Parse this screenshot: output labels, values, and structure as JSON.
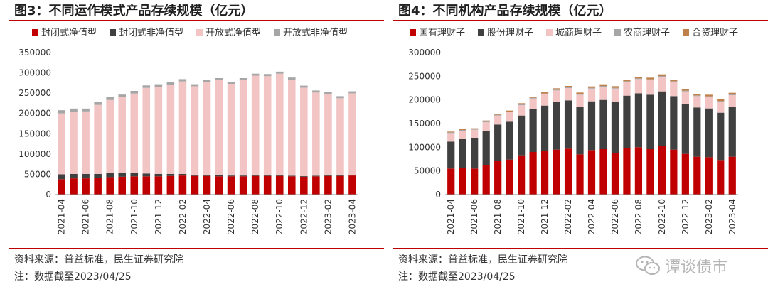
{
  "watermark": {
    "text": "谭谈债市"
  },
  "chart_data": [
    {
      "type": "bar",
      "stacked": true,
      "title": "图3：不同运作模式产品存续规模（亿元）",
      "source": "资料来源：普益标准，民生证券研究院",
      "note": "注：数据截至2023/04/25",
      "legend_position": "top",
      "ylim": [
        0,
        350000
      ],
      "yticks": [
        0,
        50000,
        100000,
        150000,
        200000,
        250000,
        300000,
        350000
      ],
      "categories": [
        "2021-04",
        "2021-05",
        "2021-06",
        "2021-07",
        "2021-08",
        "2021-09",
        "2021-10",
        "2021-11",
        "2021-12",
        "2022-01",
        "2022-02",
        "2022-03",
        "2022-04",
        "2022-05",
        "2022-06",
        "2022-07",
        "2022-08",
        "2022-09",
        "2022-10",
        "2022-11",
        "2022-12",
        "2023-01",
        "2023-02",
        "2023-03",
        "2023-04"
      ],
      "xtick_labels": [
        "2021-04",
        "2021-06",
        "2021-08",
        "2021-10",
        "2021-12",
        "2022-02",
        "2022-04",
        "2022-06",
        "2022-08",
        "2022-10",
        "2022-12",
        "2023-02",
        "2023-04"
      ],
      "series": [
        {
          "name": "封闭式净值型",
          "color": "#c00000",
          "values": [
            38000,
            40000,
            40000,
            41000,
            43000,
            44000,
            45000,
            45000,
            45000,
            46000,
            47000,
            46000,
            46000,
            45000,
            45000,
            45000,
            46000,
            46000,
            46000,
            45000,
            44000,
            45000,
            46000,
            46000,
            47000
          ]
        },
        {
          "name": "封闭式非净值型",
          "color": "#404040",
          "values": [
            12000,
            11000,
            11000,
            10000,
            10000,
            9000,
            8000,
            7000,
            6000,
            5000,
            4000,
            3000,
            3000,
            3000,
            2000,
            2000,
            2000,
            2000,
            2000,
            1500,
            1500,
            1500,
            1500,
            1500,
            1500
          ]
        },
        {
          "name": "开放式净值型",
          "color": "#f2c4c4",
          "values": [
            150000,
            153000,
            154000,
            170000,
            180000,
            187000,
            196000,
            211000,
            215000,
            220000,
            228000,
            218000,
            228000,
            234000,
            226000,
            235000,
            245000,
            244000,
            250000,
            237000,
            218000,
            205000,
            201000,
            190000,
            201000
          ]
        },
        {
          "name": "开放式非净值型",
          "color": "#a6a6a6",
          "values": [
            8000,
            8000,
            7000,
            7000,
            7000,
            6500,
            6500,
            6000,
            6000,
            5500,
            5500,
            5000,
            5000,
            5000,
            5000,
            5000,
            5000,
            5000,
            5000,
            5000,
            5000,
            5000,
            5000,
            5000,
            5000
          ]
        }
      ]
    },
    {
      "type": "bar",
      "stacked": true,
      "title": "图4：不同机构产品存续规模（亿元）",
      "source": "资料来源：普益标准，民生证券研究院",
      "note": "注：数据截至2023/04/25",
      "legend_position": "top",
      "ylim": [
        0,
        300000
      ],
      "yticks": [
        0,
        50000,
        100000,
        150000,
        200000,
        250000,
        300000
      ],
      "categories": [
        "2021-04",
        "2021-05",
        "2021-06",
        "2021-07",
        "2021-08",
        "2021-09",
        "2021-10",
        "2021-11",
        "2021-12",
        "2022-01",
        "2022-02",
        "2022-03",
        "2022-04",
        "2022-05",
        "2022-06",
        "2022-07",
        "2022-08",
        "2022-09",
        "2022-10",
        "2022-11",
        "2022-12",
        "2023-01",
        "2023-02",
        "2023-03",
        "2023-04"
      ],
      "xtick_labels": [
        "2021-04",
        "2021-06",
        "2021-08",
        "2021-10",
        "2021-12",
        "2022-02",
        "2022-04",
        "2022-06",
        "2022-08",
        "2022-10",
        "2022-12",
        "2023-02",
        "2023-04"
      ],
      "series": [
        {
          "name": "国有理财子",
          "color": "#c00000",
          "values": [
            55000,
            57000,
            55000,
            63000,
            72000,
            74000,
            83000,
            90000,
            93000,
            95000,
            97000,
            85000,
            94000,
            96000,
            88000,
            99000,
            100000,
            96000,
            102000,
            95000,
            86000,
            80000,
            79000,
            73000,
            80000
          ]
        },
        {
          "name": "股份理财子",
          "color": "#404040",
          "values": [
            57000,
            60000,
            65000,
            72000,
            76000,
            80000,
            84000,
            90000,
            95000,
            100000,
            102000,
            100000,
            103000,
            104000,
            108000,
            110000,
            114000,
            115000,
            116000,
            113000,
            105000,
            104000,
            103000,
            100000,
            105000
          ]
        },
        {
          "name": "城商理财子",
          "color": "#f2c4c4",
          "values": [
            18000,
            18000,
            17000,
            18000,
            19000,
            20000,
            22000,
            23000,
            24000,
            25000,
            26000,
            26000,
            27000,
            28000,
            28000,
            29000,
            30000,
            31000,
            31000,
            30000,
            27000,
            24000,
            24000,
            23000,
            25000
          ]
        },
        {
          "name": "农商理财子",
          "color": "#a6a6a6",
          "values": [
            1500,
            1500,
            1500,
            1500,
            1500,
            1500,
            1500,
            1500,
            1500,
            1500,
            1500,
            1500,
            1500,
            1500,
            1500,
            1500,
            1500,
            1500,
            1500,
            1500,
            1500,
            1500,
            1500,
            1500,
            1500
          ]
        },
        {
          "name": "合资理财子",
          "color": "#c0804a",
          "values": [
            1500,
            1500,
            1500,
            2000,
            2000,
            2000,
            2500,
            2500,
            3000,
            3000,
            3000,
            3000,
            3000,
            3500,
            3500,
            3500,
            3500,
            3500,
            3500,
            3500,
            3500,
            3500,
            3500,
            3500,
            3500
          ]
        }
      ]
    }
  ]
}
